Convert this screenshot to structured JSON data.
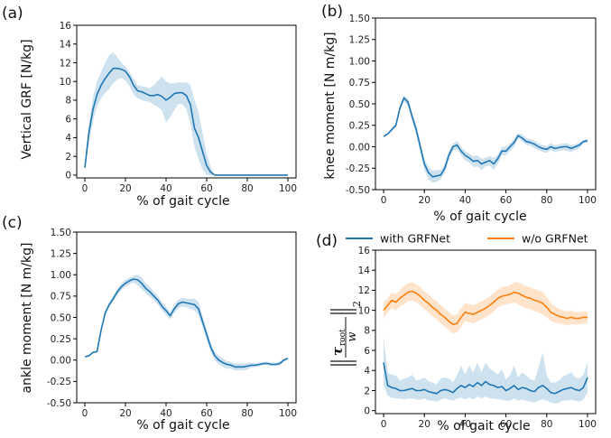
{
  "chart_data": [
    {
      "panel_label": "(a)",
      "type": "line",
      "xlabel": "% of gait cycle",
      "ylabel": "Vertical GRF [N/kg]",
      "xlim": [
        -4,
        104
      ],
      "ylim": [
        -0.3,
        16
      ],
      "xticks": [
        0,
        20,
        40,
        60,
        80,
        100
      ],
      "yticks": [
        0,
        2,
        4,
        6,
        8,
        10,
        12,
        14,
        16
      ],
      "tick_decimals": 0,
      "series": [
        {
          "color": "#1f77b4",
          "x": [
            0,
            2,
            4,
            6,
            8,
            10,
            12,
            14,
            16,
            18,
            20,
            22,
            24,
            26,
            28,
            30,
            32,
            34,
            36,
            38,
            40,
            42,
            44,
            46,
            48,
            50,
            52,
            54,
            56,
            58,
            60,
            62,
            64,
            66,
            70,
            80,
            90,
            100
          ],
          "y": [
            0.8,
            4.5,
            7.0,
            8.6,
            9.6,
            10.3,
            10.9,
            11.4,
            11.4,
            11.3,
            11.1,
            10.5,
            9.6,
            9.0,
            8.9,
            8.7,
            8.5,
            8.5,
            8.6,
            8.4,
            8.0,
            8.3,
            8.7,
            8.8,
            8.8,
            8.5,
            7.5,
            5.0,
            4.0,
            2.5,
            1.0,
            0.3,
            0.0,
            0.0,
            0.0,
            0.0,
            0.0,
            0.0
          ],
          "lower": [
            0.5,
            3.5,
            5.8,
            7.3,
            8.2,
            8.8,
            9.2,
            9.8,
            10.2,
            10.4,
            10.1,
            9.5,
            8.6,
            8.2,
            8.0,
            7.9,
            7.8,
            7.5,
            7.3,
            6.9,
            5.6,
            6.2,
            6.9,
            7.6,
            7.6,
            7.0,
            5.5,
            3.0,
            1.7,
            0.6,
            0.0,
            0.0,
            0.0,
            0.0,
            0.0,
            0.0,
            0.0,
            0.0
          ],
          "upper": [
            1.2,
            5.5,
            8.3,
            10.0,
            11.0,
            12.0,
            12.8,
            13.1,
            12.6,
            12.0,
            11.6,
            11.0,
            10.3,
            9.6,
            9.5,
            9.4,
            9.3,
            9.6,
            10.1,
            10.5,
            10.0,
            9.8,
            9.8,
            9.9,
            9.9,
            9.9,
            9.6,
            8.0,
            6.7,
            4.5,
            2.3,
            0.9,
            0.0,
            0.0,
            0.0,
            0.0,
            0.0,
            0.0
          ]
        }
      ]
    },
    {
      "panel_label": "(b)",
      "type": "line",
      "xlabel": "% of gait cycle",
      "ylabel": "knee moment [N m/kg]",
      "xlim": [
        -4,
        104
      ],
      "ylim": [
        -0.5,
        1.5
      ],
      "xticks": [
        0,
        20,
        40,
        60,
        80,
        100
      ],
      "yticks": [
        -0.5,
        -0.25,
        0.0,
        0.25,
        0.5,
        0.75,
        1.0,
        1.25,
        1.5
      ],
      "tick_decimals": 2,
      "series": [
        {
          "color": "#1f77b4",
          "x": [
            0,
            2,
            4,
            6,
            8,
            10,
            12,
            14,
            16,
            18,
            20,
            22,
            24,
            26,
            28,
            30,
            32,
            34,
            36,
            38,
            40,
            42,
            44,
            46,
            48,
            50,
            52,
            54,
            56,
            58,
            60,
            62,
            64,
            66,
            68,
            70,
            72,
            74,
            76,
            78,
            80,
            82,
            84,
            86,
            88,
            90,
            92,
            94,
            96,
            98,
            100
          ],
          "y": [
            0.12,
            0.15,
            0.2,
            0.25,
            0.45,
            0.57,
            0.52,
            0.35,
            0.2,
            0.0,
            -0.2,
            -0.3,
            -0.35,
            -0.34,
            -0.33,
            -0.25,
            -0.1,
            0.0,
            0.02,
            -0.05,
            -0.1,
            -0.13,
            -0.17,
            -0.16,
            -0.2,
            -0.18,
            -0.16,
            -0.2,
            -0.14,
            -0.05,
            -0.05,
            0.0,
            0.05,
            0.13,
            0.1,
            0.06,
            0.05,
            0.03,
            0.0,
            -0.02,
            -0.03,
            0.0,
            -0.02,
            -0.01,
            0.0,
            0.0,
            -0.02,
            0.0,
            0.02,
            0.06,
            0.07
          ],
          "lower": [
            0.11,
            0.14,
            0.18,
            0.23,
            0.42,
            0.53,
            0.47,
            0.3,
            0.14,
            -0.07,
            -0.27,
            -0.38,
            -0.42,
            -0.41,
            -0.38,
            -0.3,
            -0.15,
            -0.05,
            -0.03,
            -0.1,
            -0.16,
            -0.18,
            -0.24,
            -0.23,
            -0.27,
            -0.23,
            -0.22,
            -0.27,
            -0.2,
            -0.1,
            -0.1,
            -0.05,
            0.0,
            0.1,
            0.06,
            0.02,
            0.01,
            -0.02,
            -0.04,
            -0.06,
            -0.07,
            -0.04,
            -0.06,
            -0.05,
            -0.04,
            -0.05,
            -0.06,
            -0.04,
            -0.02,
            0.04,
            0.05
          ],
          "upper": [
            0.13,
            0.16,
            0.22,
            0.27,
            0.48,
            0.6,
            0.56,
            0.4,
            0.25,
            0.06,
            -0.14,
            -0.23,
            -0.28,
            -0.27,
            -0.27,
            -0.2,
            -0.05,
            0.04,
            0.07,
            0.0,
            -0.05,
            -0.08,
            -0.11,
            -0.1,
            -0.14,
            -0.13,
            -0.11,
            -0.13,
            -0.09,
            0.0,
            0.0,
            0.04,
            0.09,
            0.16,
            0.14,
            0.1,
            0.09,
            0.07,
            0.04,
            0.02,
            0.01,
            0.04,
            0.02,
            0.03,
            0.04,
            0.04,
            0.02,
            0.03,
            0.05,
            0.08,
            0.09
          ]
        }
      ]
    },
    {
      "panel_label": "(c)",
      "type": "line",
      "xlabel": "% of gait cycle",
      "ylabel": "ankle moment [N m/kg]",
      "xlim": [
        -4,
        104
      ],
      "ylim": [
        -0.5,
        1.5
      ],
      "xticks": [
        0,
        20,
        40,
        60,
        80,
        100
      ],
      "yticks": [
        -0.5,
        -0.25,
        0.0,
        0.25,
        0.5,
        0.75,
        1.0,
        1.25,
        1.5
      ],
      "tick_decimals": 2,
      "series": [
        {
          "color": "#1f77b4",
          "x": [
            0,
            2,
            4,
            6,
            8,
            10,
            12,
            14,
            16,
            18,
            20,
            22,
            24,
            26,
            28,
            30,
            32,
            34,
            36,
            38,
            40,
            42,
            44,
            46,
            48,
            50,
            52,
            54,
            56,
            58,
            60,
            62,
            64,
            66,
            68,
            70,
            72,
            74,
            76,
            78,
            80,
            82,
            84,
            86,
            88,
            90,
            92,
            94,
            96,
            98,
            100
          ],
          "y": [
            0.04,
            0.05,
            0.09,
            0.1,
            0.35,
            0.55,
            0.65,
            0.72,
            0.8,
            0.86,
            0.9,
            0.93,
            0.95,
            0.94,
            0.9,
            0.84,
            0.8,
            0.75,
            0.7,
            0.63,
            0.58,
            0.52,
            0.6,
            0.66,
            0.68,
            0.67,
            0.66,
            0.65,
            0.6,
            0.45,
            0.3,
            0.15,
            0.05,
            0.0,
            -0.03,
            -0.05,
            -0.06,
            -0.08,
            -0.08,
            -0.08,
            -0.07,
            -0.06,
            -0.06,
            -0.05,
            -0.04,
            -0.04,
            -0.05,
            -0.05,
            -0.04,
            0.0,
            0.02
          ],
          "lower": [
            0.03,
            0.04,
            0.08,
            0.09,
            0.33,
            0.52,
            0.62,
            0.69,
            0.76,
            0.82,
            0.86,
            0.89,
            0.91,
            0.88,
            0.83,
            0.78,
            0.74,
            0.7,
            0.65,
            0.58,
            0.53,
            0.48,
            0.55,
            0.61,
            0.63,
            0.62,
            0.6,
            0.58,
            0.52,
            0.38,
            0.24,
            0.1,
            0.0,
            -0.05,
            -0.08,
            -0.1,
            -0.1,
            -0.12,
            -0.12,
            -0.12,
            -0.11,
            -0.09,
            -0.08,
            -0.07,
            -0.06,
            -0.06,
            -0.07,
            -0.07,
            -0.06,
            -0.02,
            0.01
          ],
          "upper": [
            0.05,
            0.06,
            0.1,
            0.11,
            0.37,
            0.58,
            0.68,
            0.75,
            0.84,
            0.9,
            0.94,
            0.97,
            0.99,
            1.0,
            0.97,
            0.9,
            0.86,
            0.8,
            0.75,
            0.68,
            0.63,
            0.56,
            0.65,
            0.71,
            0.73,
            0.72,
            0.72,
            0.72,
            0.68,
            0.52,
            0.36,
            0.2,
            0.1,
            0.05,
            0.02,
            -0.01,
            -0.02,
            -0.04,
            -0.04,
            -0.04,
            -0.03,
            -0.03,
            -0.04,
            -0.03,
            -0.02,
            -0.02,
            -0.03,
            -0.03,
            -0.02,
            0.02,
            0.03
          ]
        }
      ]
    },
    {
      "panel_label": "(d)",
      "type": "line",
      "xlabel": "% of gait cycle",
      "ylabel_math": {
        "tau": "τ",
        "sub": "root",
        "denom": "w",
        "norm_sub": "2"
      },
      "xlim": [
        -4,
        104
      ],
      "ylim": [
        -0.3,
        16
      ],
      "xticks": [
        0,
        20,
        40,
        60,
        80,
        100
      ],
      "yticks": [
        0,
        2,
        4,
        6,
        8,
        10,
        12,
        14,
        16
      ],
      "tick_decimals": 0,
      "legend_position": "top",
      "series": [
        {
          "name": "with GRFNet",
          "color": "#1f77b4",
          "x": [
            0,
            2,
            4,
            6,
            8,
            10,
            12,
            14,
            16,
            18,
            20,
            22,
            24,
            26,
            28,
            30,
            32,
            34,
            36,
            38,
            40,
            42,
            44,
            46,
            48,
            50,
            52,
            54,
            56,
            58,
            60,
            62,
            64,
            66,
            68,
            70,
            72,
            74,
            76,
            78,
            80,
            82,
            84,
            86,
            88,
            90,
            92,
            94,
            96,
            98,
            100
          ],
          "y": [
            4.8,
            2.5,
            2.3,
            2.2,
            2.0,
            2.0,
            2.1,
            2.2,
            2.0,
            2.0,
            2.1,
            1.9,
            1.8,
            1.7,
            2.0,
            2.1,
            2.0,
            1.8,
            2.2,
            2.5,
            2.3,
            2.6,
            2.4,
            2.8,
            2.5,
            2.9,
            2.6,
            2.5,
            2.3,
            2.4,
            2.0,
            2.2,
            2.5,
            2.1,
            2.3,
            2.2,
            2.0,
            1.9,
            2.3,
            2.5,
            2.2,
            1.8,
            1.7,
            1.9,
            2.1,
            2.2,
            2.3,
            2.1,
            2.0,
            2.3,
            3.3
          ],
          "lower": [
            2.5,
            1.5,
            1.3,
            1.2,
            1.2,
            1.1,
            1.2,
            1.2,
            1.1,
            1.1,
            1.2,
            1.0,
            1.0,
            0.9,
            1.1,
            1.2,
            1.1,
            1.0,
            1.2,
            1.3,
            1.1,
            1.3,
            1.1,
            1.4,
            1.2,
            1.4,
            1.2,
            1.2,
            1.1,
            1.1,
            1.0,
            1.0,
            1.2,
            1.0,
            1.1,
            1.0,
            0.9,
            0.8,
            1.0,
            1.1,
            1.0,
            0.8,
            0.7,
            0.8,
            1.0,
            1.0,
            1.1,
            1.0,
            0.9,
            1.1,
            1.8
          ],
          "upper": [
            7.2,
            3.8,
            3.6,
            3.5,
            3.0,
            3.2,
            3.3,
            3.6,
            3.0,
            3.1,
            3.3,
            2.9,
            2.8,
            2.6,
            3.2,
            3.3,
            3.2,
            2.8,
            3.5,
            4.5,
            3.6,
            4.5,
            3.8,
            4.8,
            3.8,
            4.8,
            4.2,
            3.9,
            3.6,
            4.1,
            3.1,
            3.5,
            4.5,
            3.3,
            3.8,
            3.5,
            3.1,
            3.0,
            4.3,
            5.8,
            3.5,
            2.8,
            2.8,
            3.0,
            3.4,
            3.6,
            3.8,
            3.3,
            3.2,
            3.6,
            4.8
          ]
        },
        {
          "name": "w/o GRFNet",
          "color": "#ff7f0e",
          "x": [
            0,
            2,
            4,
            6,
            8,
            10,
            12,
            14,
            16,
            18,
            20,
            22,
            24,
            26,
            28,
            30,
            32,
            34,
            36,
            38,
            40,
            42,
            44,
            46,
            48,
            50,
            52,
            54,
            56,
            58,
            60,
            62,
            64,
            66,
            68,
            70,
            72,
            74,
            76,
            78,
            80,
            82,
            84,
            86,
            88,
            90,
            92,
            94,
            96,
            98,
            100
          ],
          "y": [
            10.0,
            10.5,
            11.0,
            10.8,
            11.2,
            11.5,
            11.8,
            11.9,
            11.7,
            11.4,
            11.0,
            10.7,
            10.3,
            10.0,
            9.6,
            9.3,
            8.9,
            8.6,
            8.7,
            9.3,
            9.8,
            9.7,
            9.6,
            9.8,
            10.0,
            10.2,
            10.5,
            10.8,
            11.2,
            11.4,
            11.5,
            11.6,
            11.8,
            11.7,
            11.5,
            11.3,
            11.2,
            11.0,
            10.9,
            10.7,
            10.3,
            9.8,
            9.6,
            9.4,
            9.3,
            9.2,
            9.3,
            9.2,
            9.2,
            9.3,
            9.3
          ],
          "lower": [
            9.2,
            9.8,
            10.2,
            10.0,
            10.4,
            10.6,
            10.9,
            11.0,
            10.8,
            10.5,
            10.1,
            9.8,
            9.4,
            9.1,
            8.7,
            8.4,
            8.0,
            7.7,
            7.8,
            8.4,
            8.9,
            8.8,
            8.7,
            8.9,
            9.1,
            9.3,
            9.6,
            9.9,
            10.3,
            10.5,
            10.6,
            10.7,
            10.8,
            10.6,
            10.4,
            10.2,
            10.1,
            9.9,
            9.8,
            9.6,
            9.3,
            8.9,
            8.8,
            8.7,
            8.6,
            8.5,
            8.6,
            8.6,
            8.6,
            8.7,
            8.7
          ],
          "upper": [
            10.8,
            11.2,
            11.8,
            11.6,
            12.0,
            12.4,
            12.7,
            12.8,
            12.6,
            12.3,
            11.9,
            11.6,
            11.2,
            10.9,
            10.5,
            10.2,
            9.8,
            9.5,
            9.6,
            10.2,
            10.7,
            10.6,
            10.5,
            10.7,
            10.9,
            11.1,
            11.4,
            11.7,
            12.1,
            12.3,
            12.4,
            12.5,
            12.8,
            12.8,
            12.6,
            12.4,
            12.3,
            12.1,
            12.0,
            11.8,
            11.3,
            10.7,
            10.4,
            10.1,
            10.0,
            9.9,
            10.0,
            9.8,
            9.8,
            9.9,
            9.9
          ]
        }
      ]
    }
  ]
}
